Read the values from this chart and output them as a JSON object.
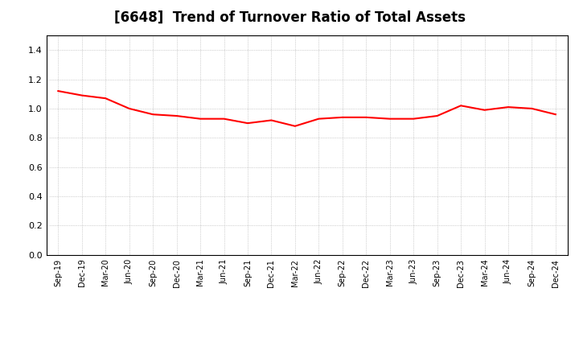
{
  "title": "[6648]  Trend of Turnover Ratio of Total Assets",
  "title_fontsize": 12,
  "line_color": "#FF0000",
  "line_width": 1.5,
  "background_color": "#FFFFFF",
  "grid_color": "#AAAAAA",
  "ylim": [
    0.0,
    1.5
  ],
  "yticks": [
    0.0,
    0.2,
    0.4,
    0.6,
    0.8,
    1.0,
    1.2,
    1.4
  ],
  "x_labels": [
    "Sep-19",
    "Dec-19",
    "Mar-20",
    "Jun-20",
    "Sep-20",
    "Dec-20",
    "Mar-21",
    "Jun-21",
    "Sep-21",
    "Dec-21",
    "Mar-22",
    "Jun-22",
    "Sep-22",
    "Dec-22",
    "Mar-23",
    "Jun-23",
    "Sep-23",
    "Dec-23",
    "Mar-24",
    "Jun-24",
    "Sep-24",
    "Dec-24"
  ],
  "values": [
    1.12,
    1.09,
    1.07,
    1.0,
    0.96,
    0.95,
    0.93,
    0.93,
    0.9,
    0.92,
    0.88,
    0.93,
    0.94,
    0.94,
    0.93,
    0.93,
    0.95,
    1.02,
    0.99,
    1.01,
    1.0,
    0.96
  ]
}
